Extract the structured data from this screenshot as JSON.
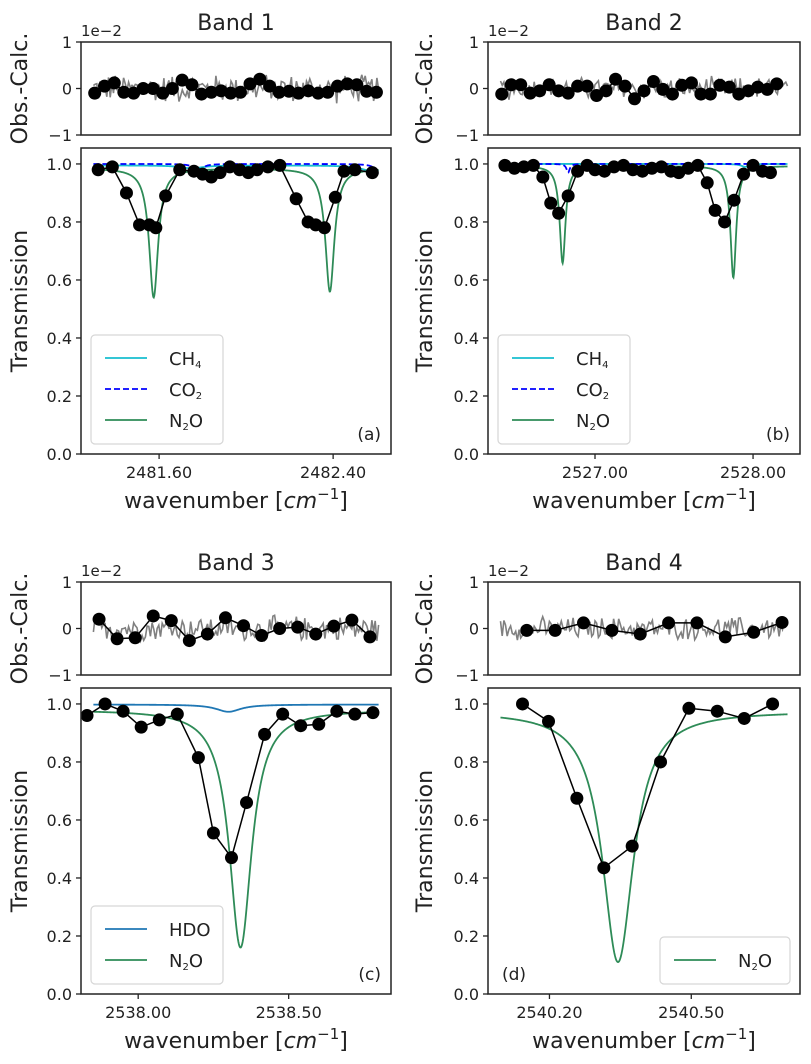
{
  "chart_data": [
    {
      "type": "line",
      "panel": "a",
      "title": "Band 1",
      "panel_label": "(a)",
      "xlabel": "wavenumber [cm^-1]",
      "xlabel_main": "wavenumber [",
      "xlabel_unit": "cm",
      "xlabel_exp": "−1",
      "xlabel_close": "]",
      "xlim": [
        2481.241,
        2482.666
      ],
      "xticks": [
        2481.6,
        2482.4
      ],
      "xtick_labels": [
        "2481.60",
        "2482.40"
      ],
      "residual": {
        "ylabel": "Obs.-Calc.",
        "scale_label": "1e−2",
        "ylim": [
          -1,
          1
        ],
        "yticks": [
          -1,
          0,
          1
        ],
        "ytick_labels": [
          "−1",
          "0",
          "1"
        ],
        "points_x": [
          2481.304,
          2481.349,
          2481.394,
          2481.438,
          2481.483,
          2481.527,
          2481.572,
          2481.617,
          2481.661,
          2481.706,
          2481.751,
          2481.795,
          2481.84,
          2481.885,
          2481.929,
          2481.974,
          2482.018,
          2482.063,
          2482.108,
          2482.152,
          2482.197,
          2482.241,
          2482.286,
          2482.331,
          2482.375,
          2482.42,
          2482.465,
          2482.509,
          2482.554,
          2482.599
        ],
        "points_y": [
          -0.1,
          0.05,
          0.12,
          -0.08,
          -0.1,
          0.0,
          0.0,
          -0.1,
          0.0,
          0.18,
          0.08,
          -0.12,
          -0.08,
          -0.05,
          -0.1,
          -0.08,
          0.1,
          0.2,
          0.05,
          -0.08,
          -0.06,
          -0.1,
          -0.05,
          -0.1,
          -0.08,
          0.05,
          0.1,
          0.08,
          -0.06,
          -0.08
        ],
        "noise_amplitude": 0.25
      },
      "transmission": {
        "ylabel": "Transmission",
        "ylim": [
          0.0,
          1.055
        ],
        "yticks": [
          0.0,
          0.2,
          0.4,
          0.6,
          0.8,
          1.0
        ],
        "ytick_labels": [
          "0.0",
          "0.2",
          "0.4",
          "0.6",
          "0.8",
          "1.0"
        ],
        "obs_x": [
          2481.32,
          2481.385,
          2481.45,
          2481.51,
          2481.555,
          2481.585,
          2481.63,
          2481.695,
          2481.76,
          2481.8,
          2481.84,
          2481.88,
          2481.925,
          2481.97,
          2482.01,
          2482.05,
          2482.1,
          2482.155,
          2482.23,
          2482.285,
          2482.32,
          2482.36,
          2482.41,
          2482.45,
          2482.5,
          2482.58
        ],
        "obs_y": [
          0.98,
          0.99,
          0.9,
          0.79,
          0.79,
          0.78,
          0.89,
          0.98,
          0.975,
          0.965,
          0.955,
          0.97,
          0.99,
          0.98,
          0.97,
          0.98,
          0.99,
          0.995,
          0.88,
          0.8,
          0.79,
          0.78,
          0.885,
          0.975,
          0.98,
          0.97
        ],
        "lines": [
          {
            "name": "CH4",
            "color": "#17becf",
            "style": "solid",
            "baseline": 0.995,
            "lines_at": [
              2481.75,
              2482.58
            ],
            "depth": [
              0.01,
              0.02
            ],
            "width": 0.06
          },
          {
            "name": "CO2",
            "color": "#0000ff",
            "style": "dashed",
            "baseline": 1.0,
            "lines_at": [
              2481.78,
              2482.62
            ],
            "depth": [
              0.03,
              0.05
            ],
            "width": 0.02
          },
          {
            "name": "N2O",
            "color": "#2e8b57",
            "style": "solid",
            "baseline": 0.985,
            "lines_at": [
              2481.575,
              2482.385
            ],
            "depth": [
              0.445,
              0.425
            ],
            "width": 0.025
          }
        ]
      },
      "legend": {
        "position": "lower-left",
        "entries": [
          {
            "name": "CH4",
            "base": "CH",
            "sub": "4",
            "after": ""
          },
          {
            "name": "CO2",
            "base": "CO",
            "sub": "2",
            "after": ""
          },
          {
            "name": "N2O",
            "base": "N",
            "sub": "2",
            "after": "O"
          }
        ]
      }
    },
    {
      "type": "line",
      "panel": "b",
      "title": "Band 2",
      "panel_label": "(b)",
      "xlabel": "wavenumber [cm^-1]",
      "xlabel_main": "wavenumber [",
      "xlabel_unit": "cm",
      "xlabel_exp": "−1",
      "xlabel_close": "]",
      "xlim": [
        2526.323,
        2528.297
      ],
      "xticks": [
        2527.0,
        2528.0
      ],
      "xtick_labels": [
        "2527.00",
        "2528.00"
      ],
      "residual": {
        "ylabel": "Obs.-Calc.",
        "scale_label": "1e−2",
        "ylim": [
          -1,
          1
        ],
        "yticks": [
          -1,
          0,
          1
        ],
        "ytick_labels": [
          "−1",
          "0",
          "1"
        ],
        "points_x": [
          2526.41,
          2526.47,
          2526.53,
          2526.59,
          2526.65,
          2526.71,
          2526.77,
          2526.83,
          2526.89,
          2526.95,
          2527.01,
          2527.07,
          2527.13,
          2527.19,
          2527.25,
          2527.31,
          2527.37,
          2527.43,
          2527.49,
          2527.55,
          2527.61,
          2527.67,
          2527.73,
          2527.79,
          2527.85,
          2527.91,
          2527.97,
          2528.03,
          2528.09,
          2528.15
        ],
        "points_y": [
          -0.12,
          0.08,
          0.08,
          -0.1,
          -0.05,
          0.08,
          -0.05,
          -0.1,
          0.05,
          0.05,
          -0.15,
          -0.05,
          0.2,
          0.05,
          -0.22,
          -0.05,
          0.15,
          -0.02,
          -0.12,
          0.07,
          0.12,
          -0.12,
          -0.12,
          0.07,
          0.03,
          -0.12,
          -0.05,
          0.03,
          -0.02,
          0.1
        ],
        "noise_amplitude": 0.2
      },
      "transmission": {
        "ylabel": "Transmission",
        "ylim": [
          0.0,
          1.055
        ],
        "yticks": [
          0.0,
          0.2,
          0.4,
          0.6,
          0.8,
          1.0
        ],
        "ytick_labels": [
          "0.0",
          "0.2",
          "0.4",
          "0.6",
          "0.8",
          "1.0"
        ],
        "obs_x": [
          2526.43,
          2526.49,
          2526.55,
          2526.61,
          2526.67,
          2526.72,
          2526.77,
          2526.83,
          2526.89,
          2526.95,
          2527.0,
          2527.06,
          2527.12,
          2527.18,
          2527.24,
          2527.3,
          2527.36,
          2527.42,
          2527.48,
          2527.53,
          2527.59,
          2527.65,
          2527.71,
          2527.76,
          2527.82,
          2527.88,
          2527.94,
          2528.0,
          2528.06,
          2528.11
        ],
        "obs_y": [
          0.995,
          0.985,
          0.99,
          0.995,
          0.955,
          0.865,
          0.83,
          0.89,
          0.975,
          0.995,
          0.98,
          0.975,
          0.99,
          0.995,
          0.98,
          0.975,
          0.985,
          0.99,
          0.975,
          0.97,
          0.985,
          0.995,
          0.935,
          0.84,
          0.8,
          0.875,
          0.965,
          0.995,
          0.975,
          0.97
        ],
        "lines": [
          {
            "name": "CH4",
            "color": "#17becf",
            "style": "solid",
            "baseline": 1.0,
            "lines_at": [
              2527.95
            ],
            "depth": [
              0.01
            ],
            "width": 0.03
          },
          {
            "name": "CO2",
            "color": "#0000ff",
            "style": "dashed",
            "baseline": 1.0,
            "lines_at": [
              2526.83
            ],
            "depth": [
              0.03
            ],
            "width": 0.012
          },
          {
            "name": "N2O",
            "color": "#2e8b57",
            "style": "solid",
            "baseline": 0.993,
            "lines_at": [
              2526.795,
              2527.875
            ],
            "depth": [
              0.335,
              0.385
            ],
            "width": 0.022
          }
        ]
      },
      "legend": {
        "position": "lower-left",
        "entries": [
          {
            "name": "CH4",
            "base": "CH",
            "sub": "4",
            "after": ""
          },
          {
            "name": "CO2",
            "base": "CO",
            "sub": "2",
            "after": ""
          },
          {
            "name": "N2O",
            "base": "N",
            "sub": "2",
            "after": "O"
          }
        ]
      }
    },
    {
      "type": "line",
      "panel": "c",
      "title": "Band 3",
      "panel_label": "(c)",
      "xlabel": "wavenumber [cm^-1]",
      "xlabel_main": "wavenumber [",
      "xlabel_unit": "cm",
      "xlabel_exp": "−1",
      "xlabel_close": "]",
      "xlim": [
        2537.81,
        2538.84
      ],
      "xticks": [
        2538.0,
        2538.5
      ],
      "xtick_labels": [
        "2538.00",
        "2538.50"
      ],
      "residual": {
        "ylabel": "Obs.-Calc.",
        "scale_label": "1e−2",
        "ylim": [
          -1,
          1
        ],
        "yticks": [
          -1,
          0,
          1
        ],
        "ytick_labels": [
          "−1",
          "0",
          "1"
        ],
        "points_x": [
          2537.87,
          2537.93,
          2537.99,
          2538.05,
          2538.11,
          2538.17,
          2538.23,
          2538.29,
          2538.35,
          2538.41,
          2538.47,
          2538.53,
          2538.59,
          2538.65,
          2538.71,
          2538.77
        ],
        "points_y": [
          0.2,
          -0.22,
          -0.2,
          0.27,
          0.17,
          -0.26,
          -0.12,
          0.23,
          0.06,
          -0.15,
          0.0,
          0.03,
          -0.12,
          0.05,
          0.18,
          -0.18
        ],
        "noise_amplitude": 0.22
      },
      "transmission": {
        "ylabel": "Transmission",
        "ylim": [
          0.0,
          1.055
        ],
        "yticks": [
          0.0,
          0.2,
          0.4,
          0.6,
          0.8,
          1.0
        ],
        "ytick_labels": [
          "0.0",
          "0.2",
          "0.4",
          "0.6",
          "0.8",
          "1.0"
        ],
        "obs_x": [
          2537.83,
          2537.89,
          2537.95,
          2538.01,
          2538.07,
          2538.13,
          2538.2,
          2538.25,
          2538.31,
          2538.36,
          2538.42,
          2538.48,
          2538.54,
          2538.6,
          2538.66,
          2538.72,
          2538.78
        ],
        "obs_y": [
          0.96,
          1.0,
          0.975,
          0.92,
          0.945,
          0.965,
          0.815,
          0.555,
          0.47,
          0.66,
          0.895,
          0.965,
          0.925,
          0.93,
          0.975,
          0.965,
          0.97
        ],
        "lines": [
          {
            "name": "HDO",
            "color": "#1f77b4",
            "style": "solid",
            "baseline": 0.998,
            "lines_at": [
              2538.3
            ],
            "depth": [
              0.025
            ],
            "width": 0.05
          },
          {
            "name": "N2O",
            "color": "#2e8b57",
            "style": "solid",
            "baseline": 0.98,
            "lines_at": [
              2538.34
            ],
            "depth": [
              0.82
            ],
            "width": 0.045
          }
        ]
      },
      "legend": {
        "position": "lower-left",
        "entries": [
          {
            "name": "HDO",
            "base": "HDO",
            "sub": "",
            "after": ""
          },
          {
            "name": "N2O",
            "base": "N",
            "sub": "2",
            "after": "O"
          }
        ]
      }
    },
    {
      "type": "line",
      "panel": "d",
      "title": "Band 4",
      "panel_label": "(d)",
      "xlabel": "wavenumber [cm^-1]",
      "xlabel_main": "wavenumber [",
      "xlabel_unit": "cm",
      "xlabel_exp": "−1",
      "xlabel_close": "]",
      "xlim": [
        2540.07,
        2540.73
      ],
      "xticks": [
        2540.2,
        2540.5
      ],
      "xtick_labels": [
        "2540.20",
        "2540.50"
      ],
      "residual": {
        "ylabel": "Obs.-Calc.",
        "scale_label": "1e−2",
        "ylim": [
          -1,
          1
        ],
        "yticks": [
          -1,
          0,
          1
        ],
        "ytick_labels": [
          "−1",
          "0",
          "1"
        ],
        "points_x": [
          2540.152,
          2540.212,
          2540.272,
          2540.332,
          2540.392,
          2540.452,
          2540.512,
          2540.572,
          2540.632,
          2540.692
        ],
        "points_y": [
          -0.04,
          -0.04,
          0.12,
          -0.04,
          -0.12,
          0.12,
          0.12,
          -0.18,
          -0.08,
          0.13
        ],
        "noise_amplitude": 0.2
      },
      "transmission": {
        "ylabel": "Transmission",
        "ylim": [
          0.0,
          1.055
        ],
        "yticks": [
          0.0,
          0.2,
          0.4,
          0.6,
          0.8,
          1.0
        ],
        "ytick_labels": [
          "0.0",
          "0.2",
          "0.4",
          "0.6",
          "0.8",
          "1.0"
        ],
        "obs_x": [
          2540.143,
          2540.198,
          2540.258,
          2540.315,
          2540.375,
          2540.435,
          2540.495,
          2540.555,
          2540.612,
          2540.672
        ],
        "obs_y": [
          1.0,
          0.94,
          0.675,
          0.435,
          0.51,
          0.8,
          0.985,
          0.975,
          0.95,
          1.0
        ],
        "lines": [
          {
            "name": "N2O",
            "color": "#2e8b57",
            "style": "solid",
            "baseline": 0.975,
            "lines_at": [
              2540.345
            ],
            "depth": [
              0.865
            ],
            "width": 0.04
          }
        ]
      },
      "legend": {
        "position": "lower-right",
        "entries": [
          {
            "name": "N2O",
            "base": "N",
            "sub": "2",
            "after": "O"
          }
        ]
      }
    }
  ]
}
